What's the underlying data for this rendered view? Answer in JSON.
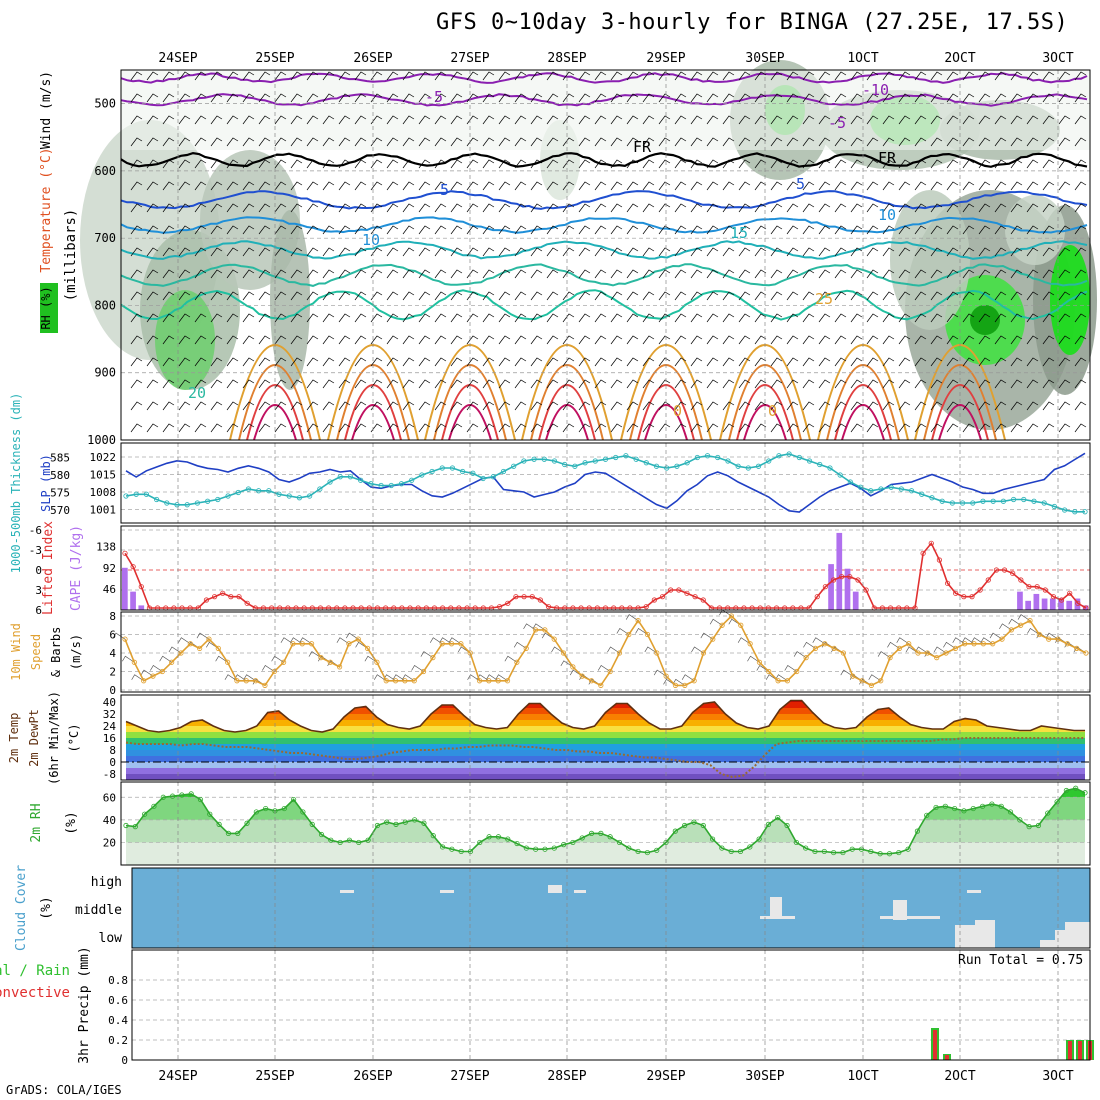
{
  "title": "GFS 0~10day 3-hourly for BINGA (27.25E, 17.5S)",
  "credit": "GrADS: COLA/IGES",
  "run_total": "Run Total = 0.75",
  "date_labels": [
    "24SEP",
    "25SEP",
    "26SEP",
    "27SEP",
    "28SEP",
    "29SEP",
    "30SEP",
    "1OCT",
    "2OCT",
    "3OCT"
  ],
  "chart_data": [
    {
      "type": "heatmap",
      "panel": "upper-air",
      "ylabel": "(millibars)",
      "side_labels": [
        "RH (%)",
        "Temperature (°C)",
        "Wind (m/s)"
      ],
      "y_ticks": [
        500,
        600,
        700,
        800,
        900,
        1000
      ],
      "ylim": [
        1000,
        450
      ],
      "contour_labels": [
        "-10",
        "-5",
        "FR",
        "5",
        "10",
        "15",
        "20",
        "25",
        "0"
      ]
    },
    {
      "type": "line",
      "panel": "slp-thickness",
      "side_labels": [
        "1000-500mb Thickness (dm)",
        "SLP (mb)"
      ],
      "left_ticks": [
        585,
        580,
        575,
        570
      ],
      "right_ticks": [
        1022,
        1015,
        1008,
        1001
      ],
      "series": [
        {
          "name": "SLP (mb)",
          "color": "#1f3fc4",
          "values": [
            1016.5,
            1014,
            1016.5,
            1018,
            1019.5,
            1020.5,
            1020,
            1018.5,
            1017.5,
            1017,
            1016,
            1017.5,
            1018.5,
            1017.5,
            1016,
            1013,
            1012,
            1013.5,
            1015.5,
            1016,
            1017,
            1016,
            1016.5,
            1013,
            1010,
            1009.5,
            1010.5,
            1011,
            1011,
            1008.5,
            1006.5,
            1006,
            1007.5,
            1009.5,
            1011.5,
            1013.5,
            1014,
            1009,
            1008.5,
            1008,
            1006,
            1007,
            1008,
            1010,
            1011.5,
            1015,
            1016,
            1015.5,
            1013,
            1010.5,
            1008,
            1005.5,
            1003,
            1001.5,
            1004.5,
            1008.5,
            1011,
            1014.5,
            1016,
            1014.5,
            1012,
            1010,
            1008,
            1006,
            1003,
            1000.5,
            1000,
            1003,
            1006,
            1008.5,
            1010,
            1011.5,
            1009.5,
            1006.5,
            1008.5,
            1011,
            1011.5,
            1012,
            1013.5,
            1015,
            1013.5,
            1012,
            1010,
            1009,
            1007.5,
            1007.5,
            1009,
            1010,
            1011,
            1012,
            1013,
            1017,
            1018.5,
            1021,
            1023.5
          ]
        },
        {
          "name": "1000-500mb Thickness (dm)",
          "color": "#2bb3b8",
          "values": [
            574,
            574.5,
            574.5,
            573,
            572,
            571.5,
            571.5,
            572,
            572.5,
            573,
            574,
            575,
            576,
            575.5,
            575.5,
            574.5,
            574,
            573.5,
            574,
            576,
            578,
            579.5,
            579.5,
            578.5,
            577.5,
            577,
            577,
            577.5,
            578.5,
            580,
            581,
            582,
            582,
            581,
            580.5,
            579,
            579.5,
            581,
            582.5,
            584,
            584.5,
            584.5,
            584,
            583,
            582.5,
            583.5,
            584,
            584.5,
            585,
            585.5,
            584.5,
            583.5,
            582.5,
            582,
            582.5,
            583.5,
            585,
            585.5,
            585,
            584,
            582.5,
            582,
            582.5,
            584,
            585.5,
            586,
            585,
            584,
            583,
            582,
            580,
            578,
            576.5,
            575.5,
            576,
            576.5,
            576,
            575.5,
            574.5,
            573.5,
            572.5,
            572,
            572,
            572,
            572.5,
            572.5,
            572.5,
            573,
            573,
            572.5,
            572,
            571,
            570,
            569.5,
            569.5
          ]
        }
      ]
    },
    {
      "type": "bar",
      "panel": "lifted-index-cape",
      "side_labels": [
        "Lifted Index",
        "CAPE (J/kg)"
      ],
      "left_ticks": [
        -6,
        -3,
        0,
        3,
        6
      ],
      "right_ticks": [
        138,
        92,
        46
      ],
      "series": [
        {
          "name": "CAPE (J/kg)",
          "color": "#b070ee",
          "values": [
            92,
            40,
            10,
            0,
            0,
            0,
            0,
            0,
            0,
            0,
            0,
            0,
            0,
            0,
            0,
            0,
            0,
            0,
            0,
            0,
            0,
            0,
            0,
            0,
            0,
            0,
            0,
            0,
            0,
            0,
            0,
            0,
            0,
            0,
            0,
            0,
            0,
            0,
            0,
            0,
            0,
            0,
            0,
            0,
            0,
            0,
            0,
            0,
            0,
            0,
            0,
            0,
            0,
            0,
            0,
            0,
            0,
            0,
            0,
            0,
            0,
            0,
            0,
            0,
            0,
            0,
            0,
            0,
            0,
            0,
            0,
            0,
            0,
            0,
            0,
            0,
            0,
            0,
            0,
            0,
            0,
            0,
            0,
            0,
            0,
            0,
            100,
            168,
            90,
            40,
            0,
            0,
            0,
            0,
            0,
            0,
            0,
            0,
            0,
            0,
            0,
            0,
            0,
            0,
            0,
            0,
            0,
            0,
            0,
            40,
            20,
            35,
            25,
            25,
            25,
            20,
            25,
            10
          ]
        },
        {
          "name": "Lifted Index",
          "color": "#e03030",
          "values": [
            -2.5,
            -0.5,
            2.5,
            6,
            6,
            6,
            6,
            6,
            6,
            6,
            4.5,
            4,
            3.5,
            4,
            4,
            5,
            6,
            6,
            6,
            6,
            6,
            6,
            6,
            6,
            6,
            6,
            6,
            6,
            6,
            6,
            6,
            6,
            6,
            6,
            6,
            6,
            6,
            6,
            6,
            6,
            6,
            6,
            6,
            6,
            6,
            6,
            5.5,
            5,
            4,
            4,
            4,
            4.5,
            5.5,
            6,
            6,
            6,
            6,
            6,
            6,
            6,
            6,
            6,
            6,
            6,
            5.5,
            4.5,
            4,
            3,
            3,
            3.5,
            4,
            4.5,
            6,
            6,
            6,
            6,
            6,
            6,
            6,
            6,
            6,
            6,
            6,
            6,
            6,
            4,
            2.5,
            1.5,
            1,
            1,
            1.5,
            3,
            6,
            6,
            6,
            6,
            6,
            6,
            -2.5,
            -4,
            -1.5,
            2,
            3.5,
            4,
            4,
            3,
            1.5,
            0,
            0,
            0.5,
            1.5,
            2.5,
            2.5,
            3,
            4,
            4.5,
            3.5,
            5,
            6
          ]
        }
      ]
    },
    {
      "type": "line",
      "panel": "10m-wind",
      "side_labels": [
        "10m Wind",
        "Speed",
        "& Barbs",
        "(m/s)"
      ],
      "y_ticks": [
        0,
        2,
        4,
        6,
        8
      ],
      "ylim": [
        0,
        8
      ],
      "series": [
        {
          "name": "Speed",
          "color": "#e0a030",
          "values": [
            5.5,
            3,
            1,
            1.5,
            2,
            3,
            4,
            5,
            4.5,
            5.5,
            4.5,
            3,
            1,
            1,
            1,
            0.5,
            2,
            3,
            5,
            5,
            5,
            3.5,
            3,
            2.5,
            5,
            5.5,
            4.5,
            3,
            1,
            1,
            1,
            1,
            2,
            3.5,
            5,
            5,
            5,
            4,
            1,
            1,
            1,
            1,
            3,
            4.5,
            6.5,
            6.5,
            5.5,
            4,
            2.5,
            1.5,
            1,
            0.5,
            2,
            4,
            6,
            7.5,
            6,
            4,
            1.5,
            0.5,
            0.5,
            1,
            4,
            5.5,
            7,
            8,
            7,
            5,
            3,
            2,
            1,
            1,
            2,
            3.5,
            4.5,
            5,
            4.5,
            4,
            1.5,
            1,
            0.5,
            1,
            3.5,
            4.5,
            5,
            4,
            4,
            3.5,
            4,
            4.5,
            5,
            5,
            5,
            5,
            5.5,
            6.5,
            7,
            7.5,
            6,
            5.5,
            5.5,
            5,
            4.5,
            4
          ]
        }
      ]
    },
    {
      "type": "area",
      "panel": "2m-temp",
      "side_labels": [
        "2m Temp",
        "2m DewPt",
        "(6hr Min/Max)",
        "(°C)"
      ],
      "y_ticks": [
        40,
        32,
        24,
        16,
        8,
        0,
        -8
      ],
      "ylim": [
        -12,
        42
      ],
      "series": [
        {
          "name": "2m Temp",
          "color": "#603010",
          "values": [
            27,
            24,
            21,
            20,
            21,
            23,
            27,
            28,
            24,
            21,
            20,
            21,
            24,
            33,
            34,
            28,
            24,
            21,
            20,
            22,
            30,
            36,
            37,
            30,
            25,
            23,
            22,
            24,
            32,
            38,
            38,
            31,
            25,
            23,
            22,
            23,
            32,
            39,
            39,
            32,
            26,
            23,
            22,
            24,
            33,
            39,
            39,
            32,
            26,
            22,
            22,
            24,
            33,
            39,
            40,
            32,
            26,
            23,
            22,
            24,
            35,
            41,
            41,
            33,
            26,
            23,
            22,
            23,
            30,
            35,
            36,
            30,
            25,
            23,
            22,
            22,
            27,
            29,
            28,
            24,
            23,
            22,
            21,
            21,
            24,
            23,
            22,
            21,
            21
          ]
        },
        {
          "name": "2m DewPt",
          "color": "#9a6a30",
          "values": [
            13,
            12,
            12,
            12,
            12,
            11,
            12,
            12,
            11,
            10,
            10,
            10,
            9,
            8,
            7,
            6,
            6,
            5,
            4,
            3,
            2,
            2,
            3,
            4,
            6,
            7,
            8,
            8,
            8,
            9,
            9,
            10,
            10,
            11,
            11,
            11,
            10,
            10,
            9,
            8,
            8,
            7,
            7,
            6,
            6,
            5,
            4,
            3,
            3,
            2,
            1,
            0,
            0,
            -2,
            -8,
            -10,
            -9,
            -3,
            5,
            12,
            13,
            14,
            14,
            14,
            14,
            14,
            14,
            14,
            14,
            14,
            14,
            14,
            14,
            14,
            15,
            15,
            16,
            16,
            16,
            16,
            16,
            16,
            16,
            16,
            16,
            16,
            16,
            16
          ]
        }
      ]
    },
    {
      "type": "area",
      "panel": "2m-rh",
      "side_labels": [
        "2m RH",
        "(%)"
      ],
      "y_ticks": [
        60,
        40,
        20
      ],
      "ylim": [
        0,
        70
      ],
      "series": [
        {
          "name": "2m RH",
          "color": "#2fa82f",
          "values": [
            35,
            34,
            45,
            52,
            60,
            61,
            62,
            63,
            58,
            45,
            36,
            28,
            28,
            37,
            47,
            50,
            48,
            50,
            58,
            47,
            36,
            27,
            22,
            20,
            22,
            20,
            22,
            35,
            38,
            36,
            38,
            40,
            37,
            26,
            16,
            14,
            12,
            12,
            20,
            25,
            25,
            23,
            19,
            15,
            14,
            14,
            15,
            18,
            20,
            24,
            28,
            28,
            25,
            20,
            15,
            12,
            11,
            13,
            20,
            30,
            35,
            38,
            35,
            23,
            15,
            12,
            12,
            16,
            23,
            36,
            42,
            35,
            20,
            15,
            12,
            12,
            11,
            11,
            14,
            14,
            12,
            10,
            10,
            11,
            14,
            30,
            44,
            51,
            52,
            50,
            48,
            50,
            52,
            54,
            52,
            47,
            40,
            34,
            35,
            46,
            56,
            66,
            68,
            64
          ]
        }
      ]
    },
    {
      "type": "bar",
      "panel": "cloud-cover",
      "side_labels": [
        "Cloud Cover",
        "(%)"
      ],
      "y_ticks": [
        "high",
        "middle",
        "low"
      ]
    },
    {
      "type": "bar",
      "panel": "3hr-precip",
      "side_labels": [
        "Total / Rain",
        "Convective",
        "3hr Precip (mm)"
      ],
      "y_ticks": [
        0,
        0.2,
        0.4,
        0.6,
        0.8
      ],
      "ylim": [
        0,
        1
      ],
      "series": [
        {
          "name": "Total / Rain",
          "color": "#30c030",
          "values": [
            0.32,
            0.06,
            0.2,
            0.2,
            0.2
          ]
        },
        {
          "name": "Convective",
          "color": "#e03030",
          "values": [
            0.3,
            0.05,
            0.19,
            0.19,
            0.19
          ]
        }
      ]
    }
  ]
}
